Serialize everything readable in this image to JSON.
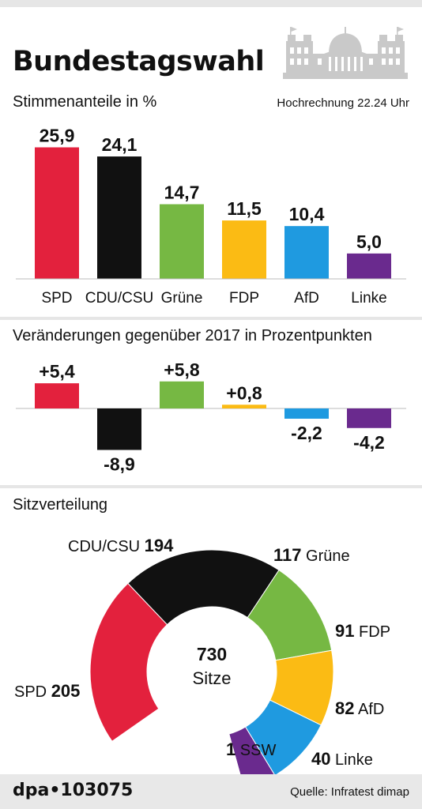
{
  "header": {
    "title": "Bundestagswahl",
    "subtitle": "Stimmenanteile in %",
    "note": "Hochrechnung 22.24 Uhr",
    "building_icon": "reichstag-building-icon"
  },
  "colors": {
    "SPD": "#e3213d",
    "CDU/CSU": "#111111",
    "Grüne": "#76b843",
    "FDP": "#fbbb14",
    "AfD": "#1f9ae0",
    "Linke": "#6a2a8e",
    "SSW": "#0b3e8c"
  },
  "chart_data": [
    {
      "type": "bar",
      "title": "Stimmenanteile in %",
      "categories": [
        "SPD",
        "CDU/CSU",
        "Grüne",
        "FDP",
        "AfD",
        "Linke"
      ],
      "values": [
        25.9,
        24.1,
        14.7,
        11.5,
        10.4,
        5.0
      ],
      "value_labels": [
        "25,9",
        "24,1",
        "14,7",
        "11,5",
        "10,4",
        "5,0"
      ],
      "ylim": [
        0,
        28
      ],
      "grid": false
    },
    {
      "type": "bar",
      "title": "Veränderungen gegenüber 2017 in Prozentpunkten",
      "categories": [
        "SPD",
        "CDU/CSU",
        "Grüne",
        "FDP",
        "AfD",
        "Linke"
      ],
      "values": [
        5.4,
        -8.9,
        5.8,
        0.8,
        -2.2,
        -4.2
      ],
      "value_labels": [
        "+5,4",
        "-8,9",
        "+5,8",
        "+0,8",
        "-2,2",
        "-4,2"
      ],
      "ylim": [
        -10,
        7
      ],
      "grid": false
    },
    {
      "type": "pie",
      "title": "Sitzverteilung",
      "total": 730,
      "total_label": "Sitze",
      "slices": [
        {
          "party": "SPD",
          "seats": 205
        },
        {
          "party": "CDU/CSU",
          "seats": 194
        },
        {
          "party": "Grüne",
          "seats": 117
        },
        {
          "party": "FDP",
          "seats": 91
        },
        {
          "party": "AfD",
          "seats": 82
        },
        {
          "party": "Linke",
          "seats": 40
        },
        {
          "party": "SSW",
          "seats": 1
        }
      ]
    }
  ],
  "sections": {
    "change_title": "Veränderungen gegenüber 2017 in Prozentpunkten",
    "seats_title": "Sitzverteilung"
  },
  "footer": {
    "agency": "dpa•103075",
    "source": "Quelle: Infratest dimap"
  }
}
